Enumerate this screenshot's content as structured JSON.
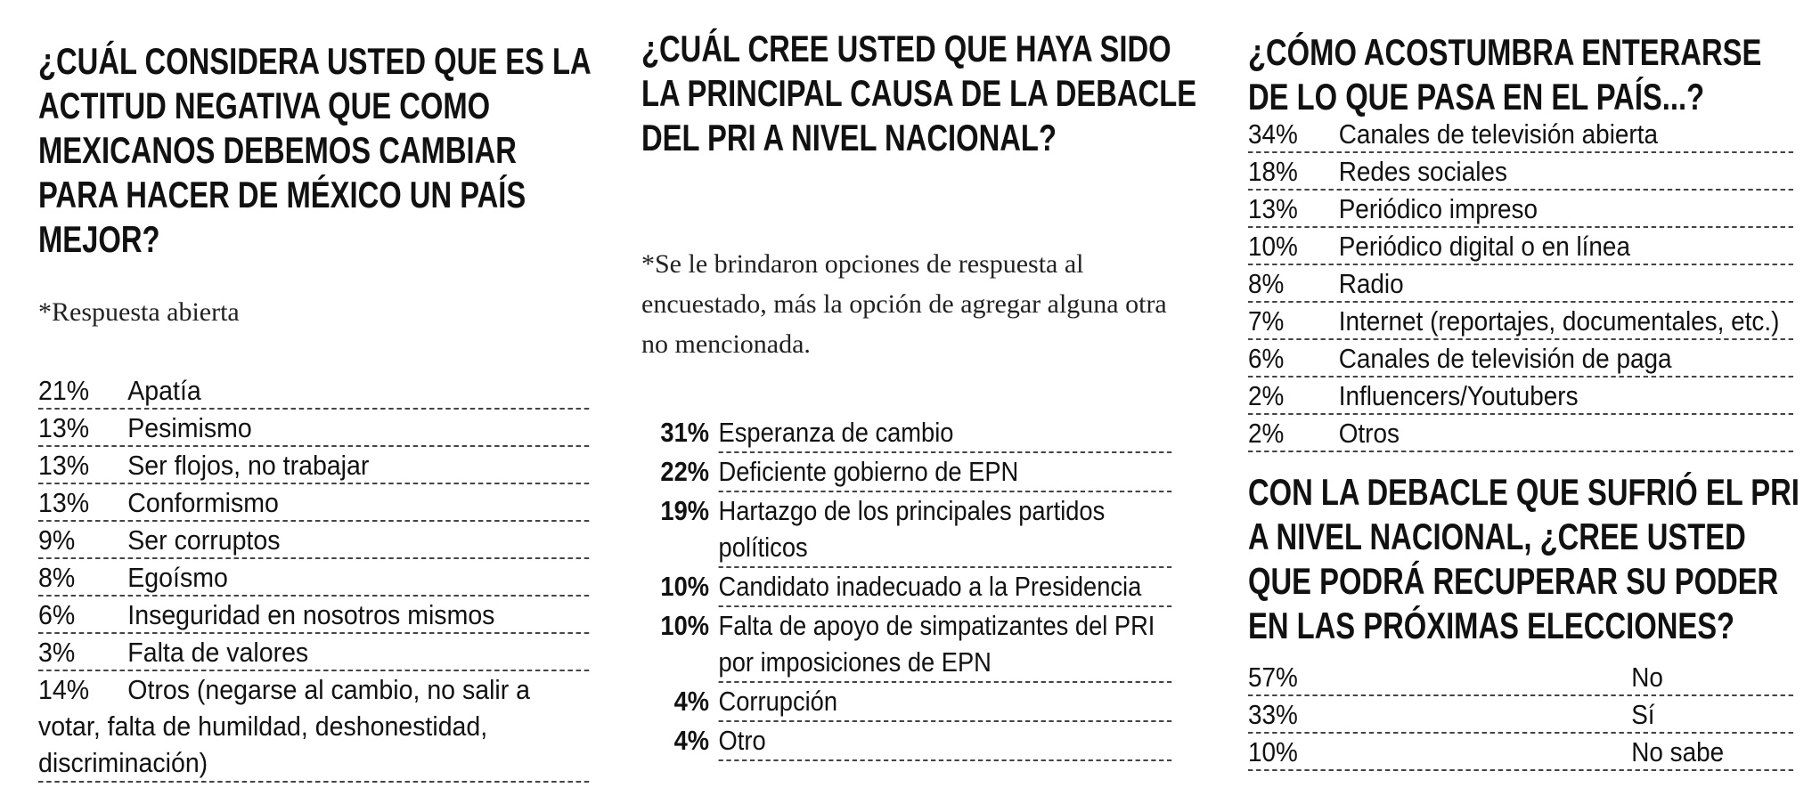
{
  "col1": {
    "title": "¿CUÁL CONSIDERA USTED QUE ES LA ACTITUD NEGATIVA QUE COMO MEXICANOS DEBEMOS CAMBIAR PARA HACER DE MÉXICO UN PAÍS MEJOR?",
    "note": "*Respuesta abierta",
    "rows": [
      {
        "pct": "21%",
        "label": "Apatía"
      },
      {
        "pct": "13%",
        "label": "Pesimismo"
      },
      {
        "pct": "13%",
        "label": "Ser flojos, no trabajar"
      },
      {
        "pct": "13%",
        "label": "Conformismo"
      },
      {
        "pct": "9%",
        "label": "Ser corruptos"
      },
      {
        "pct": "8%",
        "label": "Egoísmo"
      },
      {
        "pct": "6%",
        "label": "Inseguridad en nosotros mismos"
      },
      {
        "pct": "3%",
        "label": "Falta de valores"
      },
      {
        "pct": "14%",
        "label": "Otros (negarse al cambio, no salir a votar, falta de humildad, deshonestidad, discriminación)"
      }
    ]
  },
  "col2": {
    "title": "¿CUÁL CREE USTED QUE HAYA SIDO LA PRINCIPAL CAUSA DE LA DEBACLE DEL PRI A NIVEL NACIONAL?",
    "note": "*Se le brindaron opciones de respuesta al encuestado, más la opción de agregar alguna otra no mencionada.",
    "rows": [
      {
        "pct": "31%",
        "label": "Esperanza de cambio"
      },
      {
        "pct": "22%",
        "label": "Deficiente gobierno de EPN"
      },
      {
        "pct": "19%",
        "label": "Hartazgo de los principales partidos políticos"
      },
      {
        "pct": "10%",
        "label": "Candidato inadecuado a la Presidencia"
      },
      {
        "pct": "10%",
        "label": "Falta de apoyo de simpatizantes del PRI por imposiciones de EPN"
      },
      {
        "pct": "4%",
        "label": "Corrupción"
      },
      {
        "pct": "4%",
        "label": "Otro"
      }
    ]
  },
  "col3": {
    "title": "¿CÓMO ACOSTUMBRA  ENTERARSE DE LO QUE PASA EN EL PAÍS...?",
    "rows": [
      {
        "pct": "34%",
        "label": "Canales de televisión abierta"
      },
      {
        "pct": "18%",
        "label": "Redes sociales"
      },
      {
        "pct": "13%",
        "label": "Periódico impreso"
      },
      {
        "pct": "10%",
        "label": "Periódico digital o en línea"
      },
      {
        "pct": "8%",
        "label": "Radio"
      },
      {
        "pct": "7%",
        "label": "Internet (reportajes, documentales, etc.)"
      },
      {
        "pct": "6%",
        "label": "Canales de televisión de paga"
      },
      {
        "pct": "2%",
        "label": "Influencers/Youtubers"
      },
      {
        "pct": "2%",
        "label": "Otros"
      }
    ],
    "title2": "CON LA DEBACLE QUE SUFRIÓ EL PRI A NIVEL NACIONAL, ¿CREE USTED QUE PODRÁ RECUPERAR SU PODER EN LAS PRÓXIMAS ELECCIONES?",
    "rows2": [
      {
        "pct": "57%",
        "label": "No"
      },
      {
        "pct": "33%",
        "label": "Sí"
      },
      {
        "pct": "10%",
        "label": "No sabe"
      }
    ]
  }
}
